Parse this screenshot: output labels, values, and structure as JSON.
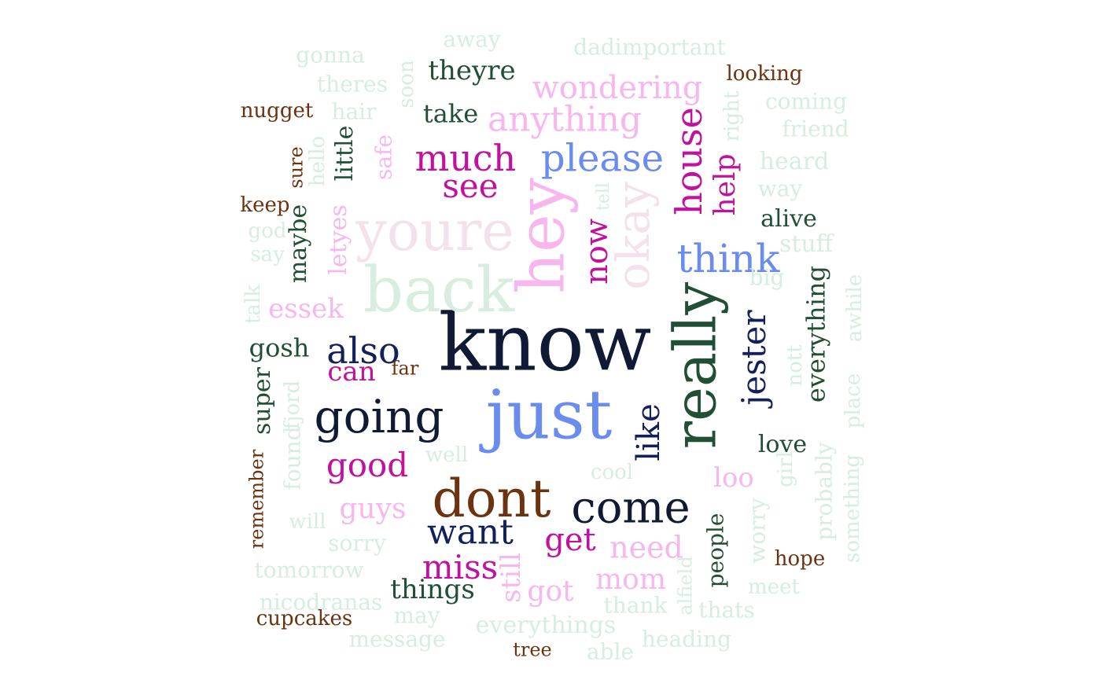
{
  "colors": {
    "navy": "#101a35",
    "blue": "#6a8cee",
    "darkblue": "#13215a",
    "magenta": "#c0129f",
    "pink": "#f7b7ee",
    "palepink": "#f3e2ec",
    "mint": "#d6ede0",
    "green": "#214f35",
    "brown": "#6b3310"
  },
  "words": [
    "know",
    "just",
    "really",
    "hey",
    "back",
    "youre",
    "dont",
    "going",
    "come",
    "okay",
    "please",
    "think",
    "house",
    "much",
    "anything",
    "also",
    "want",
    "like",
    "jester",
    "see",
    "wondering",
    "good",
    "now",
    "help",
    "miss",
    "get",
    "essek",
    "guys",
    "can",
    "still",
    "need",
    "mom",
    "gosh",
    "got",
    "things",
    "theyre",
    "take",
    "everything",
    "little",
    "maybe",
    "safe",
    "super",
    "letyes",
    "alive",
    "love",
    "people",
    "loo",
    "nott",
    "stuff",
    "heard",
    "dadimportant",
    "away",
    "gonna",
    "theres",
    "hair",
    "soon",
    "coming",
    "friend",
    "right",
    "way",
    "looking",
    "nugget",
    "keep",
    "sure",
    "hello",
    "god",
    "say",
    "talk",
    "big",
    "awhile",
    "far",
    "found",
    "fjord",
    "remember",
    "will",
    "sorry",
    "tomorrow",
    "nicodranas",
    "cupcakes",
    "may",
    "message",
    "everythings",
    "tree",
    "able",
    "heading",
    "thank",
    "alfield",
    "thats",
    "meet",
    "hope",
    "worry",
    "girl",
    "probably",
    "something",
    "place",
    "tell",
    "well",
    "cool"
  ]
}
